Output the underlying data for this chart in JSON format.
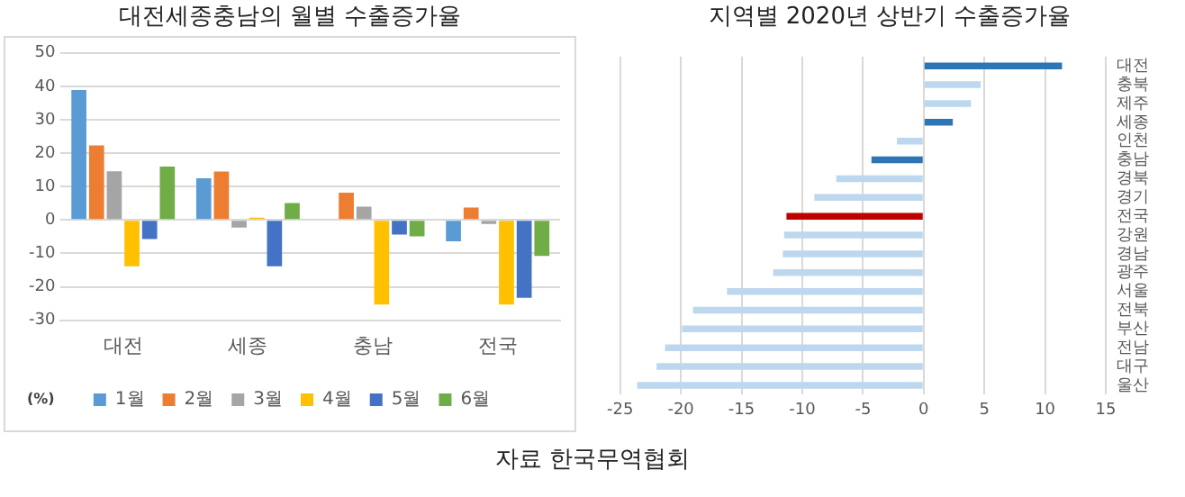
{
  "chart_data": [
    {
      "type": "bar",
      "title": "대전세종충남의 월별 수출증가율",
      "ylabel": "(%)",
      "categories": [
        "대전",
        "세종",
        "충남",
        "전국"
      ],
      "series": [
        {
          "name": "1월",
          "color": "#5b9bd5",
          "values": [
            38.9,
            12.5,
            null,
            -6.4
          ]
        },
        {
          "name": "2월",
          "color": "#ed7d31",
          "values": [
            22.3,
            14.5,
            8.2,
            3.7
          ]
        },
        {
          "name": "3월",
          "color": "#a5a5a5",
          "values": [
            14.6,
            -2.3,
            4.0,
            -1.2
          ]
        },
        {
          "name": "4월",
          "color": "#ffc000",
          "values": [
            -13.9,
            0.7,
            -25.3,
            -25.3
          ]
        },
        {
          "name": "5월",
          "color": "#4472c4",
          "values": [
            -5.7,
            -13.9,
            -4.4,
            -23.3
          ]
        },
        {
          "name": "6월",
          "color": "#70ad47",
          "values": [
            16.0,
            5.1,
            -4.9,
            -10.8
          ]
        }
      ],
      "ylim": [
        -30,
        50
      ],
      "yticks": [
        -30,
        -20,
        -10,
        0,
        10,
        20,
        30,
        40,
        50
      ],
      "grid": "y",
      "legend": "bottom"
    },
    {
      "type": "bar",
      "orientation": "horizontal",
      "title": "지역별 2020년 상반기 수출증가율",
      "categories": [
        "대전",
        "충북",
        "제주",
        "세종",
        "인천",
        "충남",
        "경북",
        "경기",
        "전국",
        "강원",
        "경남",
        "광주",
        "서울",
        "전북",
        "부산",
        "전남",
        "대구",
        "울산"
      ],
      "values": [
        11.4,
        4.7,
        3.9,
        2.4,
        -2.2,
        -4.3,
        -7.2,
        -9.0,
        -11.3,
        -11.5,
        -11.6,
        -12.4,
        -16.2,
        -19.0,
        -19.9,
        -21.3,
        -22.0,
        -23.6
      ],
      "colors": [
        "#2e75b6",
        "#bdd7ee",
        "#bdd7ee",
        "#2e75b6",
        "#bdd7ee",
        "#2e75b6",
        "#bdd7ee",
        "#bdd7ee",
        "#c00000",
        "#bdd7ee",
        "#bdd7ee",
        "#bdd7ee",
        "#bdd7ee",
        "#bdd7ee",
        "#bdd7ee",
        "#bdd7ee",
        "#bdd7ee",
        "#bdd7ee"
      ],
      "xlim": [
        -25,
        15
      ],
      "xticks": [
        -25,
        -20,
        -15,
        -10,
        -5,
        0,
        5,
        10,
        15
      ],
      "grid": "x",
      "annotations": [
        "자료 한국무역협회"
      ]
    }
  ]
}
